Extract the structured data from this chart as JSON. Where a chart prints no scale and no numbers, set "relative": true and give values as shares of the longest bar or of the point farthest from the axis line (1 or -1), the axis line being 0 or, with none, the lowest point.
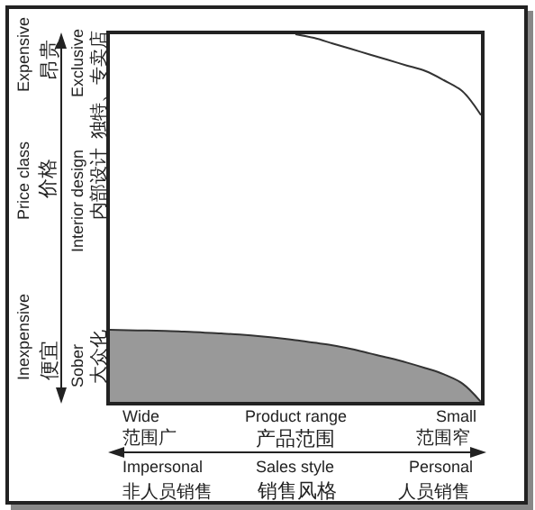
{
  "chart_data": {
    "type": "area",
    "relative": true,
    "xlabel": "Product range",
    "ylabel": "Price class",
    "categories": [
      null,
      null,
      null,
      null,
      null,
      null,
      null,
      null,
      null,
      null,
      null,
      null,
      null,
      null,
      null,
      null,
      null,
      null,
      null,
      null,
      null
    ],
    "series": [
      {
        "type": "line",
        "color": "#333333",
        "values": [
          null,
          null,
          null,
          null,
          null,
          null,
          null,
          null,
          null,
          null,
          1,
          0.99,
          0.975,
          0.96,
          0.945,
          0.93,
          0.915,
          0.9,
          0.875,
          0.845,
          0.78
        ]
      },
      {
        "color": "#999999",
        "values": [
          0.196,
          0.195,
          0.194,
          0.193,
          0.191,
          0.189,
          0.186,
          0.183,
          0.179,
          0.174,
          0.168,
          0.161,
          0.154,
          0.144,
          0.132,
          0.12,
          0.107,
          0.092,
          0.075,
          0.05,
          0
        ]
      }
    ],
    "annotations": [
      "Expensive",
      "Inexpensive",
      "昂贵",
      "价格",
      "便宜",
      "Exclusive",
      "Interior design",
      "Sober",
      "独特、专卖店",
      "内部设计",
      "大众化",
      "Wide",
      "Small",
      "范围广",
      "产品范围",
      "范围窄",
      "Impersonal",
      "Sales style",
      "Personal",
      "非人员销售",
      "销售风格",
      "人员销售"
    ],
    "grid": false
  }
}
